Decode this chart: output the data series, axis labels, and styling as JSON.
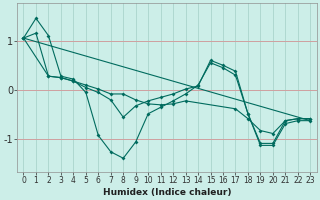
{
  "xlabel": "Humidex (Indice chaleur)",
  "background_color": "#cceee8",
  "grid_color": "#aad4cc",
  "line_color": "#006b5e",
  "hline_color": "#d0a0a0",
  "xlim": [
    -0.5,
    23.5
  ],
  "ylim": [
    -1.65,
    1.75
  ],
  "yticks": [
    -1,
    0,
    1
  ],
  "xticks": [
    0,
    1,
    2,
    3,
    4,
    5,
    6,
    7,
    8,
    9,
    10,
    11,
    12,
    13,
    14,
    15,
    16,
    17,
    18,
    19,
    20,
    21,
    22,
    23
  ],
  "series_with_markers": [
    {
      "x": [
        0,
        1,
        2,
        3,
        4,
        5,
        6,
        7,
        8,
        9,
        10,
        11,
        12,
        13,
        14,
        15,
        16,
        17,
        18,
        19,
        20,
        21,
        22,
        23
      ],
      "y": [
        1.05,
        1.45,
        1.1,
        0.28,
        0.22,
        -0.05,
        -0.92,
        -1.25,
        -1.38,
        -1.05,
        -0.48,
        -0.35,
        -0.22,
        -0.08,
        0.1,
        0.55,
        0.45,
        0.3,
        -0.48,
        -1.12,
        -1.12,
        -0.68,
        -0.62,
        -0.62
      ]
    },
    {
      "x": [
        0,
        1,
        2,
        3,
        4,
        5,
        6,
        7,
        8,
        9,
        10,
        11,
        12,
        13,
        14,
        15,
        16,
        17,
        18,
        19,
        20,
        21,
        22,
        23
      ],
      "y": [
        1.05,
        1.15,
        0.28,
        0.25,
        0.18,
        0.05,
        -0.05,
        -0.2,
        -0.55,
        -0.32,
        -0.22,
        -0.15,
        -0.08,
        0.02,
        0.08,
        0.6,
        0.5,
        0.38,
        -0.48,
        -1.08,
        -1.08,
        -0.62,
        -0.58,
        -0.58
      ]
    },
    {
      "x": [
        0,
        2,
        3,
        4,
        5,
        6,
        7,
        8,
        9,
        10,
        11,
        12,
        13,
        17,
        18,
        19,
        20,
        21,
        22,
        23
      ],
      "y": [
        1.05,
        0.28,
        0.25,
        0.18,
        0.1,
        0.02,
        -0.08,
        -0.08,
        -0.2,
        -0.28,
        -0.3,
        -0.28,
        -0.22,
        -0.38,
        -0.58,
        -0.82,
        -0.88,
        -0.62,
        -0.58,
        -0.58
      ]
    }
  ],
  "series_straight": {
    "x": [
      0,
      23
    ],
    "y": [
      1.05,
      -0.62
    ]
  }
}
